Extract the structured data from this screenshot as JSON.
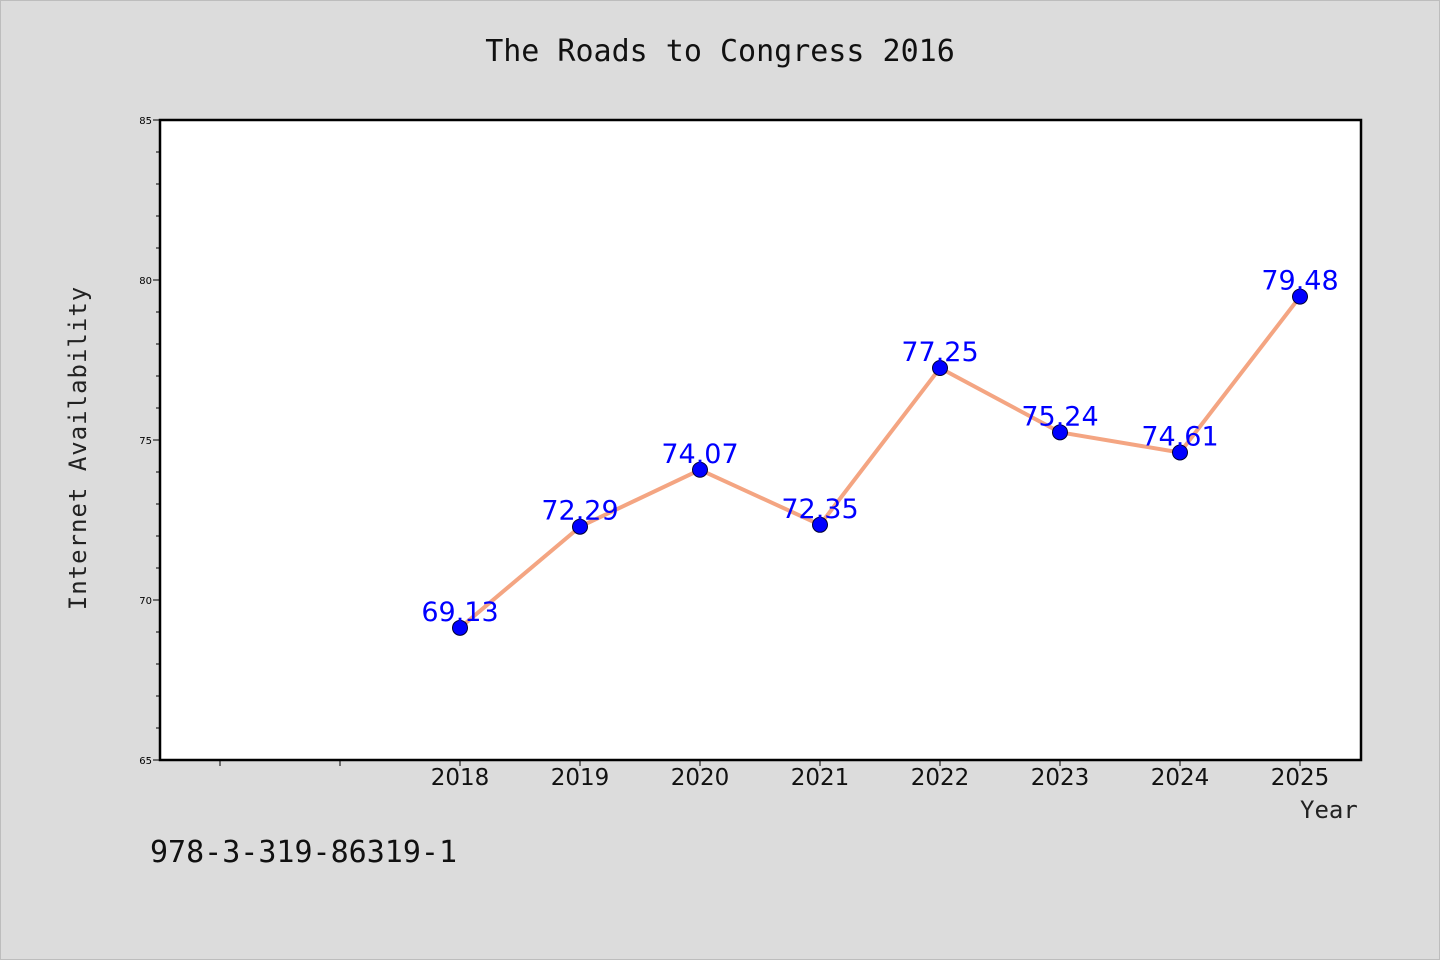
{
  "chart_data": {
    "type": "line",
    "title": "The Roads to Congress 2016",
    "xlabel": "Year",
    "ylabel": "Internet Availability",
    "categories": [
      "2018",
      "2019",
      "2020",
      "2021",
      "2022",
      "2023",
      "2024",
      "2025"
    ],
    "series": [
      {
        "values": [
          69.13,
          72.29,
          74.07,
          72.35,
          77.25,
          75.24,
          74.61,
          79.48
        ],
        "data_labels": [
          "69.13",
          "72.29",
          "74.07",
          "72.35",
          "77.25",
          "75.24",
          "74.61",
          "79.48"
        ],
        "line_color": "#f4a582",
        "marker_color": "#0000ff",
        "label_color": "#0000ff"
      }
    ],
    "ylim": [
      65,
      85
    ],
    "yticks": [
      "65",
      "70",
      "75",
      "80",
      "85"
    ],
    "grid": false,
    "legend": "none"
  },
  "footer": {
    "code": "978-3-319-86319-1"
  }
}
